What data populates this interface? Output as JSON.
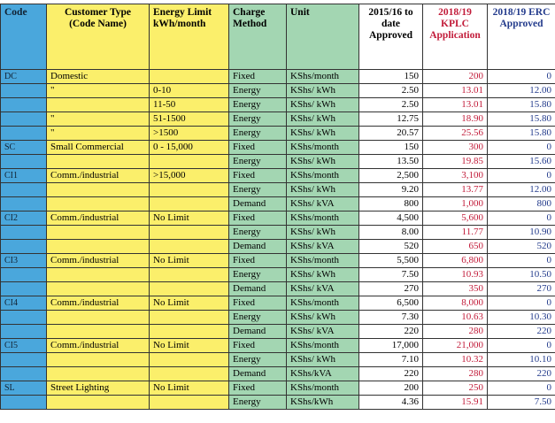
{
  "table": {
    "columns": [
      "Code",
      "Customer Type (Code Name)",
      "Energy Limit kWh/month",
      "Charge Method",
      "Unit",
      "2015/16 to date Approved",
      "2018/19 KPLC Application",
      "2018/19 ERC Approved"
    ],
    "rows": [
      [
        "DC",
        "Domestic",
        null,
        "Fixed",
        "KShs/month",
        "150",
        "200",
        "0"
      ],
      [
        null,
        "\"",
        "0-10",
        "Energy",
        "KShs/ kWh",
        "2.50",
        "13.01",
        "12.00"
      ],
      [
        null,
        null,
        "11-50",
        "Energy",
        "KShs/ kWh",
        "2.50",
        "13.01",
        "15.80"
      ],
      [
        null,
        "\"",
        "51-1500",
        "Energy",
        "KShs/ kWh",
        "12.75",
        "18.90",
        "15.80"
      ],
      [
        null,
        "\"",
        ">1500",
        "Energy",
        "KShs/ kWh",
        "20.57",
        "25.56",
        "15.80"
      ],
      [
        "SC",
        "Small Commercial",
        "0 - 15,000",
        "Fixed",
        "KShs/month",
        "150",
        "300",
        "0"
      ],
      [
        null,
        null,
        null,
        "Energy",
        "KShs/ kWh",
        "13.50",
        "19.85",
        "15.60"
      ],
      [
        "CI1",
        "Comm./industrial",
        ">15,000",
        "Fixed",
        "KShs/month",
        "2,500",
        "3,100",
        "0"
      ],
      [
        null,
        null,
        null,
        "Energy",
        "KShs/ kWh",
        "9.20",
        "13.77",
        "12.00"
      ],
      [
        null,
        null,
        null,
        "Demand",
        "KShs/ kVA",
        "800",
        "1,000",
        "800"
      ],
      [
        "CI2",
        "Comm./industrial",
        "No Limit",
        "Fixed",
        "KShs/month",
        "4,500",
        "5,600",
        "0"
      ],
      [
        null,
        null,
        null,
        "Energy",
        "KShs/ kWh",
        "8.00",
        "11.77",
        "10.90"
      ],
      [
        null,
        null,
        null,
        "Demand",
        "KShs/ kVA",
        "520",
        "650",
        "520"
      ],
      [
        "CI3",
        "Comm./industrial",
        "No Limit",
        "Fixed",
        "KShs/month",
        "5,500",
        "6,800",
        "0"
      ],
      [
        null,
        null,
        null,
        "Energy",
        "KShs/ kWh",
        "7.50",
        "10.93",
        "10.50"
      ],
      [
        null,
        null,
        null,
        "Demand",
        "KShs/ kVA",
        "270",
        "350",
        "270"
      ],
      [
        "CI4",
        "Comm./industrial",
        "No Limit",
        "Fixed",
        "KShs/month",
        "6,500",
        "8,000",
        "0"
      ],
      [
        null,
        null,
        null,
        "Energy",
        "KShs/ kWh",
        "7.30",
        "10.63",
        "10.30"
      ],
      [
        null,
        null,
        null,
        "Demand",
        "KShs/ kVA",
        "220",
        "280",
        "220"
      ],
      [
        "CI5",
        "Comm./industrial",
        "No Limit",
        "Fixed",
        "KShs/month",
        "17,000",
        "21,000",
        "0"
      ],
      [
        null,
        null,
        null,
        "Energy",
        "KShs/ kWh",
        "7.10",
        "10.32",
        "10.10"
      ],
      [
        null,
        null,
        null,
        "Demand",
        "KShs/kVA",
        "220",
        "280",
        "220"
      ],
      [
        "SL",
        "Street Lighting",
        "No Limit",
        "Fixed",
        "KShs/month",
        "200",
        "250",
        "0"
      ],
      [
        null,
        null,
        null,
        "Energy",
        "KShs/kWh",
        "4.36",
        "15.91",
        "7.50"
      ]
    ]
  }
}
